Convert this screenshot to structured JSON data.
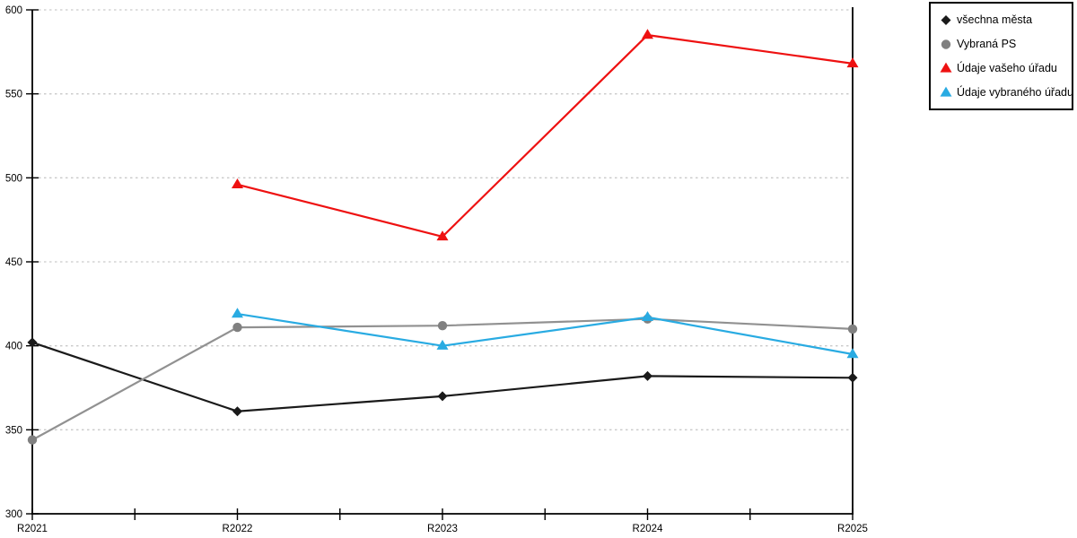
{
  "chart_data": {
    "type": "line",
    "title": "",
    "xlabel": "",
    "ylabel": "",
    "categories": [
      "R2021",
      "R2022",
      "R2023",
      "R2024",
      "R2025"
    ],
    "series": [
      {
        "name": "všechna města",
        "marker": "diamond",
        "color": "#1a1a1a",
        "values": [
          402,
          361,
          370,
          382,
          381
        ]
      },
      {
        "name": "Vybraná PS",
        "marker": "circle",
        "color": "#808080",
        "line_color": "#919191",
        "values": [
          344,
          411,
          412,
          416,
          410
        ]
      },
      {
        "name": "Údaje vašeho úřadu",
        "marker": "triangle",
        "color": "#ee1111",
        "values": [
          null,
          496,
          465,
          585,
          568
        ]
      },
      {
        "name": "Údaje vybraného úřadu",
        "marker": "triangle",
        "color": "#29abe2",
        "values": [
          null,
          419,
          400,
          417,
          395
        ]
      }
    ],
    "ylim": [
      300,
      600
    ],
    "yticks": [
      300,
      350,
      400,
      450,
      500,
      550,
      600
    ],
    "grid": "dotted",
    "grid_color": "#c9c9c9",
    "axis_color": "#000000",
    "tick_label_color": "#000000",
    "legend_position": "top-right"
  }
}
